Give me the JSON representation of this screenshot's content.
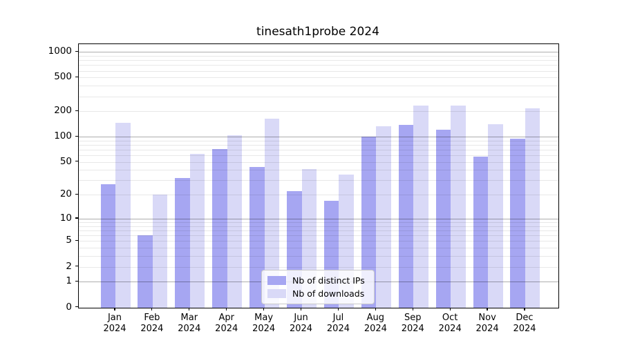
{
  "chart_data": {
    "type": "bar",
    "title": "tinesath1probe 2024",
    "categories": [
      "Jan",
      "Feb",
      "Mar",
      "Apr",
      "May",
      "Jun",
      "Jul",
      "Aug",
      "Sep",
      "Oct",
      "Nov",
      "Dec"
    ],
    "category_year": "2024",
    "series": [
      {
        "name": "Nb of distinct IPs",
        "color": "#a6a6f2",
        "values": [
          27,
          6,
          32,
          71,
          44,
          22,
          17,
          100,
          137,
          120,
          58,
          95
        ]
      },
      {
        "name": "Nb of downloads",
        "color": "#d9d9f7",
        "values": [
          145,
          20,
          63,
          105,
          165,
          41,
          35,
          132,
          233,
          232,
          140,
          215
        ]
      }
    ],
    "ylabel": "",
    "xlabel": "",
    "yscale": "log10(1+value)",
    "yticks": [
      0,
      1,
      2,
      5,
      10,
      20,
      50,
      100,
      200,
      500,
      1000
    ],
    "ytick_labels": [
      "0",
      "1",
      "2",
      "5",
      "10",
      "20",
      "50",
      "100",
      "200",
      "500",
      "1000"
    ],
    "ylim": [
      0,
      1250
    ],
    "grid": "horizontal only; dark lines at 1,10,100,1000; faint lines at 2-9 of each decade",
    "legend": {
      "position": "lower center",
      "entries": [
        "Nb of distinct IPs",
        "Nb of downloads"
      ]
    }
  },
  "colors": {
    "bar_dark": "#a6a6f2",
    "bar_light": "#d9d9f7",
    "major_grid": "rgba(0,0,0,0.32)",
    "minor_grid": "rgba(0,0,0,0.09)",
    "spine": "#000000",
    "text": "#000000",
    "legend_border": "#c9c9c9",
    "legend_bg": "rgba(255,255,255,0.82)"
  }
}
